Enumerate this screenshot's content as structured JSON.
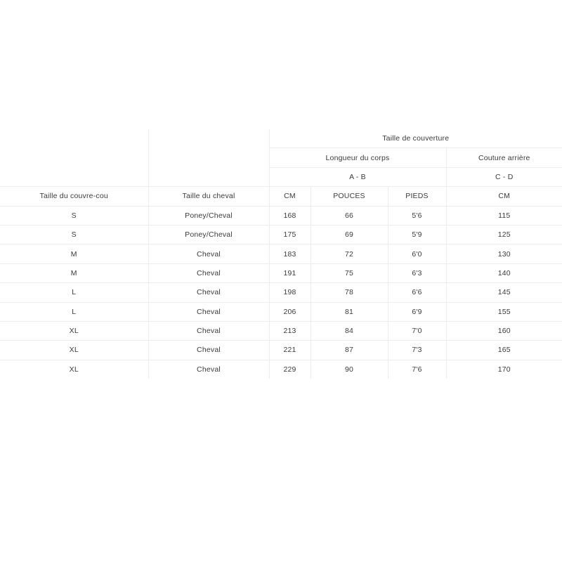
{
  "table": {
    "group_header": "Taille de couverture",
    "sub_headers": {
      "body_length": "Longueur du corps",
      "back_seam": "Couture arrière"
    },
    "measure_points": {
      "body_length": "A - B",
      "back_seam": "C - D"
    },
    "columns": [
      "Taille du couvre-cou",
      "Taille du cheval",
      "CM",
      "POUCES",
      "PIEDS",
      "CM"
    ],
    "rows": [
      [
        "S",
        "Poney/Cheval",
        "168",
        "66",
        "5'6",
        "115"
      ],
      [
        "S",
        "Poney/Cheval",
        "175",
        "69",
        "5'9",
        "125"
      ],
      [
        "M",
        "Cheval",
        "183",
        "72",
        "6'0",
        "130"
      ],
      [
        "M",
        "Cheval",
        "191",
        "75",
        "6'3",
        "140"
      ],
      [
        "L",
        "Cheval",
        "198",
        "78",
        "6'6",
        "145"
      ],
      [
        "L",
        "Cheval",
        "206",
        "81",
        "6'9",
        "155"
      ],
      [
        "XL",
        "Cheval",
        "213",
        "84",
        "7'0",
        "160"
      ],
      [
        "XL",
        "Cheval",
        "221",
        "87",
        "7'3",
        "165"
      ],
      [
        "XL",
        "Cheval",
        "229",
        "90",
        "7'6",
        "170"
      ]
    ]
  }
}
